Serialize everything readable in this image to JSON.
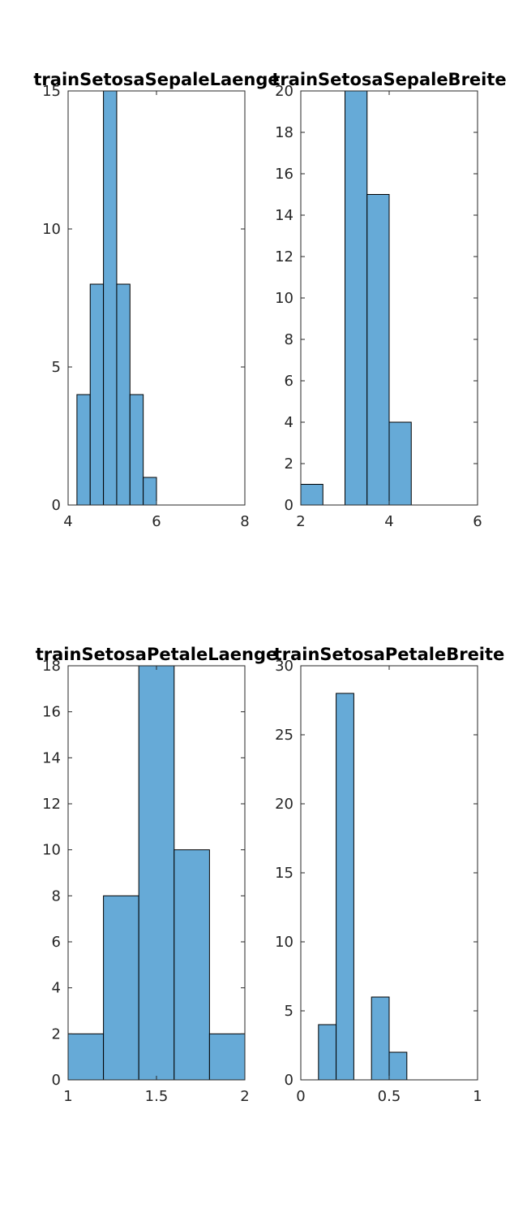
{
  "chart_data": [
    {
      "type": "bar",
      "title": "trainSetosaSepaleLaenge",
      "xlabel": "",
      "ylabel": "",
      "xlim": [
        4,
        8
      ],
      "ylim": [
        0,
        15
      ],
      "xticks": [
        4,
        6,
        8
      ],
      "xtick_labels": [
        "4",
        "6",
        "8"
      ],
      "yticks": [
        0,
        5,
        10,
        15
      ],
      "ytick_labels": [
        "0",
        "5",
        "10",
        "15"
      ],
      "bins": [
        {
          "x0": 4.2,
          "x1": 4.5,
          "count": 4
        },
        {
          "x0": 4.5,
          "x1": 4.8,
          "count": 8
        },
        {
          "x0": 4.8,
          "x1": 5.1,
          "count": 15
        },
        {
          "x0": 5.1,
          "x1": 5.4,
          "count": 8
        },
        {
          "x0": 5.4,
          "x1": 5.7,
          "count": 4
        },
        {
          "x0": 5.7,
          "x1": 6.0,
          "count": 1
        }
      ],
      "bar_color": "#66aad7",
      "grid": false
    },
    {
      "type": "bar",
      "title": "trainSetosaSepaleBreite",
      "xlabel": "",
      "ylabel": "",
      "xlim": [
        2,
        6
      ],
      "ylim": [
        0,
        20
      ],
      "xticks": [
        2,
        4,
        6
      ],
      "xtick_labels": [
        "2",
        "4",
        "6"
      ],
      "yticks": [
        0,
        2,
        4,
        6,
        8,
        10,
        12,
        14,
        16,
        18,
        20
      ],
      "ytick_labels": [
        "0",
        "2",
        "4",
        "6",
        "8",
        "10",
        "12",
        "14",
        "16",
        "18",
        "20"
      ],
      "bins": [
        {
          "x0": 2.0,
          "x1": 2.5,
          "count": 1
        },
        {
          "x0": 2.5,
          "x1": 3.0,
          "count": 0
        },
        {
          "x0": 3.0,
          "x1": 3.5,
          "count": 20
        },
        {
          "x0": 3.5,
          "x1": 4.0,
          "count": 15
        },
        {
          "x0": 4.0,
          "x1": 4.5,
          "count": 4
        }
      ],
      "bar_color": "#66aad7",
      "grid": false
    },
    {
      "type": "bar",
      "title": "trainSetosaPetaleLaenge",
      "xlabel": "",
      "ylabel": "",
      "xlim": [
        1,
        2
      ],
      "ylim": [
        0,
        18
      ],
      "xticks": [
        1,
        1.5,
        2
      ],
      "xtick_labels": [
        "1",
        "1.5",
        "2"
      ],
      "yticks": [
        0,
        2,
        4,
        6,
        8,
        10,
        12,
        14,
        16,
        18
      ],
      "ytick_labels": [
        "0",
        "2",
        "4",
        "6",
        "8",
        "10",
        "12",
        "14",
        "16",
        "18"
      ],
      "bins": [
        {
          "x0": 1.0,
          "x1": 1.2,
          "count": 2
        },
        {
          "x0": 1.2,
          "x1": 1.4,
          "count": 8
        },
        {
          "x0": 1.4,
          "x1": 1.6,
          "count": 18
        },
        {
          "x0": 1.6,
          "x1": 1.8,
          "count": 10
        },
        {
          "x0": 1.8,
          "x1": 2.0,
          "count": 2
        }
      ],
      "bar_color": "#66aad7",
      "grid": false
    },
    {
      "type": "bar",
      "title": "trainSetosaPetaleBreite",
      "xlabel": "",
      "ylabel": "",
      "xlim": [
        0,
        1
      ],
      "ylim": [
        0,
        30
      ],
      "xticks": [
        0,
        0.5,
        1
      ],
      "xtick_labels": [
        "0",
        "0.5",
        "1"
      ],
      "yticks": [
        0,
        5,
        10,
        15,
        20,
        25,
        30
      ],
      "ytick_labels": [
        "0",
        "5",
        "10",
        "15",
        "20",
        "25",
        "30"
      ],
      "bins": [
        {
          "x0": 0.1,
          "x1": 0.2,
          "count": 4
        },
        {
          "x0": 0.2,
          "x1": 0.3,
          "count": 28
        },
        {
          "x0": 0.3,
          "x1": 0.4,
          "count": 0
        },
        {
          "x0": 0.4,
          "x1": 0.5,
          "count": 6
        },
        {
          "x0": 0.5,
          "x1": 0.6,
          "count": 2
        }
      ],
      "bar_color": "#66aad7",
      "grid": false
    }
  ]
}
